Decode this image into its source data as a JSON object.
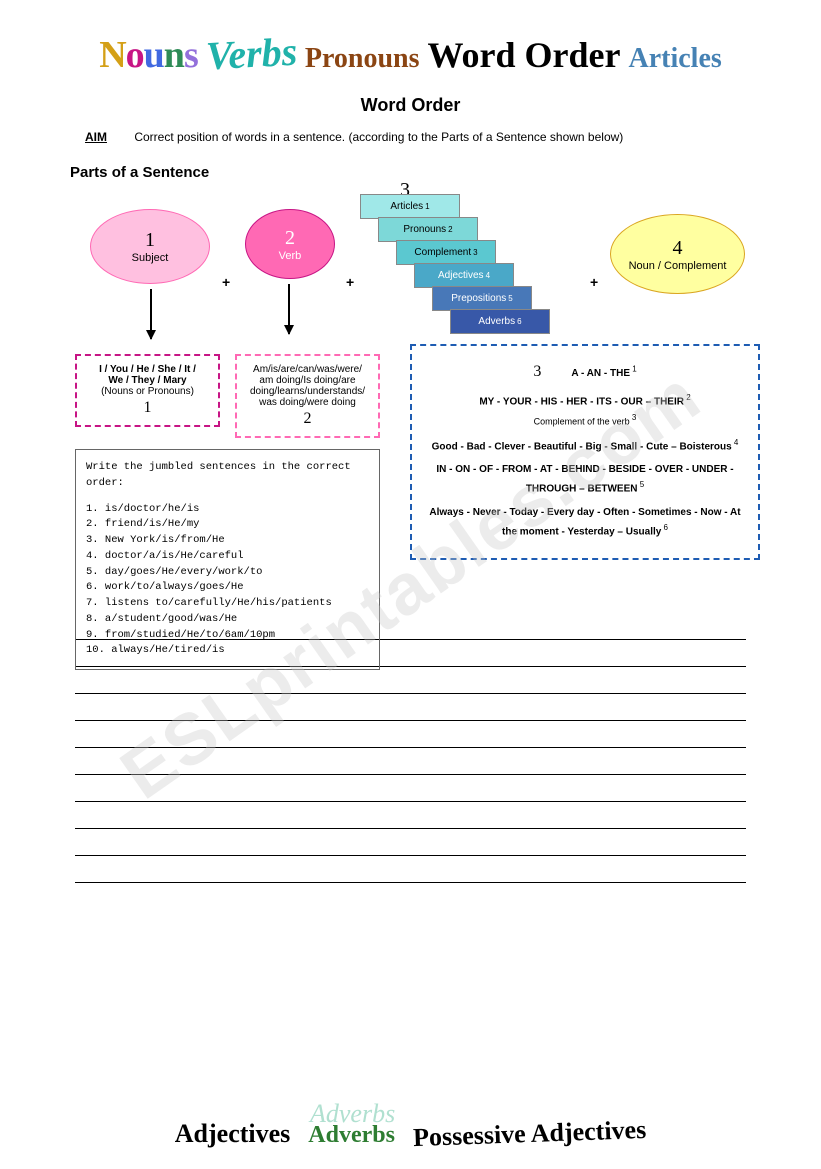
{
  "header": {
    "nouns": "Nouns",
    "verbs": "Verbs",
    "pronouns": "Pronouns",
    "wordorder": "Word Order",
    "articles": "Articles"
  },
  "title": "Word Order",
  "aim": {
    "label": "AIM",
    "text": "Correct position of words in a sentence. (according to the Parts of a Sentence shown below)"
  },
  "partsTitle": "Parts of a Sentence",
  "ellipses": {
    "e1": {
      "num": "1",
      "label": "Subject"
    },
    "e2": {
      "num": "2",
      "label": "Verb"
    },
    "e4": {
      "num": "4",
      "label": "Noun / Complement"
    }
  },
  "num3": "3",
  "cascade": [
    {
      "label": "Articles",
      "sup": "1",
      "bg": "#a0e8e8"
    },
    {
      "label": "Pronouns",
      "sup": "2",
      "bg": "#7dd8d8"
    },
    {
      "label": "Complement",
      "sup": "3",
      "bg": "#5bc8d0"
    },
    {
      "label": "Adjectives",
      "sup": "4",
      "bg": "#4aa8c8"
    },
    {
      "label": "Prepositions",
      "sup": "5",
      "bg": "#4878b8"
    },
    {
      "label": "Adverbs",
      "sup": "6",
      "bg": "#3858a8"
    }
  ],
  "box1": {
    "line1": "I / You / He / She / It /",
    "line2": "We / They / Mary",
    "line3": "(Nouns or Pronouns)",
    "num": "1"
  },
  "box2": {
    "line1": "Am/is/are/can/was/were/",
    "line2": "am doing/Is doing/are",
    "line3": "doing/learns/understands/",
    "line4": "was doing/were doing",
    "num": "2"
  },
  "box3": {
    "num": "3",
    "g1": "A - AN - THE",
    "g2": "MY - YOUR - HIS - HER - ITS - OUR – THEIR",
    "g3": "Complement of the verb",
    "g4": "Good - Bad - Clever - Beautiful - Big - Small - Cute – Boisterous",
    "g5": "IN - ON - OF - FROM - AT - BEHIND - BESIDE - OVER - UNDER - THROUGH – BETWEEN",
    "g6": "Always - Never - Today - Every day - Often - Sometimes - Now - At the moment - Yesterday – Usually"
  },
  "exercise": {
    "title": "Write the jumbled sentences in the correct order:",
    "items": [
      "is/doctor/he/is",
      "friend/is/He/my",
      "New York/is/from/He",
      "doctor/a/is/He/careful",
      "day/goes/He/every/work/to",
      "work/to/always/goes/He",
      "listens to/carefully/He/his/patients",
      "a/student/good/was/He",
      "from/studied/He/to/6am/10pm",
      "always/He/tired/is"
    ]
  },
  "lineCount": 10,
  "footer": {
    "adverbsShadow": "Adverbs",
    "adjectives": "Adjectives",
    "adverbs": "Adverbs",
    "possessive": "Possessive Adjectives"
  },
  "watermark": "ESLprintables.com"
}
